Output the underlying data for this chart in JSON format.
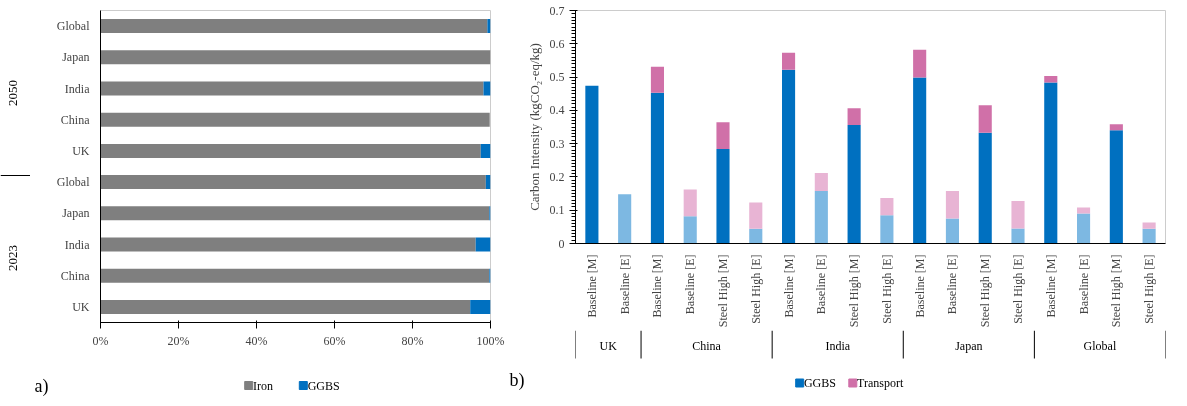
{
  "chart_data": [
    {
      "type": "bar",
      "orientation": "horizontal",
      "stacked": true,
      "categories": [
        "Global",
        "Japan",
        "India",
        "China",
        "UK",
        "Global",
        "Japan",
        "India",
        "China",
        "UK"
      ],
      "series": [
        {
          "name": "Iron",
          "color": "#7f7f7f",
          "values": [
            99.2,
            100,
            98.2,
            99.8,
            97.5,
            98.8,
            99.7,
            96.2,
            99.7,
            94.8
          ]
        },
        {
          "name": "GGBS",
          "color": "#0070c0",
          "values": [
            0.8,
            0,
            1.8,
            null,
            2.5,
            1.2,
            0.3,
            3.8,
            0.3,
            5.2
          ]
        }
      ],
      "xlim": [
        0,
        100
      ],
      "xticks": [
        {
          "value": 0,
          "label": "0%"
        },
        {
          "value": 20,
          "label": "20%"
        },
        {
          "value": 40,
          "label": "40%"
        },
        {
          "value": 60,
          "label": "60%"
        },
        {
          "value": 80,
          "label": "80%"
        },
        {
          "value": 100,
          "label": "100%"
        }
      ],
      "annotations": [
        "2050",
        "2023",
        "a)"
      ],
      "legend": "bottom",
      "grid": false
    },
    {
      "type": "bar",
      "stacked": true,
      "categories": [
        "Baseline [M]",
        "Baseline [E]",
        "Baseline [M]",
        "Baseline [E]",
        "Steel High [M]",
        "Steel High [E]",
        "Baseline [M]",
        "Baseline [E]",
        "Steel High [M]",
        "Steel High [E]",
        "Baseline [M]",
        "Baseline [E]",
        "Steel High [M]",
        "Steel High [E]",
        "Baseline [M]",
        "Baseline [E]",
        "Steel High [M]",
        "Steel High [E]"
      ],
      "series": [
        {
          "name": "GGBS",
          "color": "#0070c0",
          "colors": [
            "#0070c0",
            "#7db8e2",
            "#0070c0",
            "#7db8e2",
            "#0070c0",
            "#7db8e2",
            "#0070c0",
            "#7db8e2",
            "#0070c0",
            "#7db8e2",
            "#0070c0",
            "#7db8e2",
            "#0070c0",
            "#7db8e2",
            "#0070c0",
            "#7db8e2",
            "#0070c0",
            "#7db8e2"
          ],
          "values": [
            0.474,
            0.148,
            0.453,
            0.082,
            0.284,
            0.044,
            0.522,
            0.158,
            0.356,
            0.085,
            0.499,
            0.075,
            0.333,
            0.045,
            0.484,
            0.09,
            0.34,
            0.044
          ]
        },
        {
          "name": "Transport",
          "color": "#d070a8",
          "colors": [
            "#d070a8",
            "#e8b4d4",
            "#d070a8",
            "#e8b4d4",
            "#d070a8",
            "#e8b4d4",
            "#d070a8",
            "#e8b4d4",
            "#d070a8",
            "#e8b4d4",
            "#d070a8",
            "#e8b4d4",
            "#d070a8",
            "#e8b4d4",
            "#d070a8",
            "#e8b4d4",
            "#d070a8",
            "#e8b4d4"
          ],
          "values": [
            0,
            0,
            0.078,
            0.08,
            0.08,
            0.079,
            0.051,
            0.054,
            0.05,
            0.052,
            0.083,
            0.083,
            0.082,
            0.083,
            0.019,
            0.018,
            0.018,
            0.019
          ]
        }
      ],
      "ylim": [
        0,
        0.7
      ],
      "yticks": [
        0,
        0.1,
        0.2,
        0.3,
        0.4,
        0.5,
        0.6,
        0.7
      ],
      "ylabel": "Carbon Intensity (kgCO₂-eq/kg)",
      "annotations": [
        "UK",
        "China",
        "India",
        "Japan",
        "Global",
        "b)"
      ],
      "legend": "bottom",
      "grid": false
    }
  ]
}
